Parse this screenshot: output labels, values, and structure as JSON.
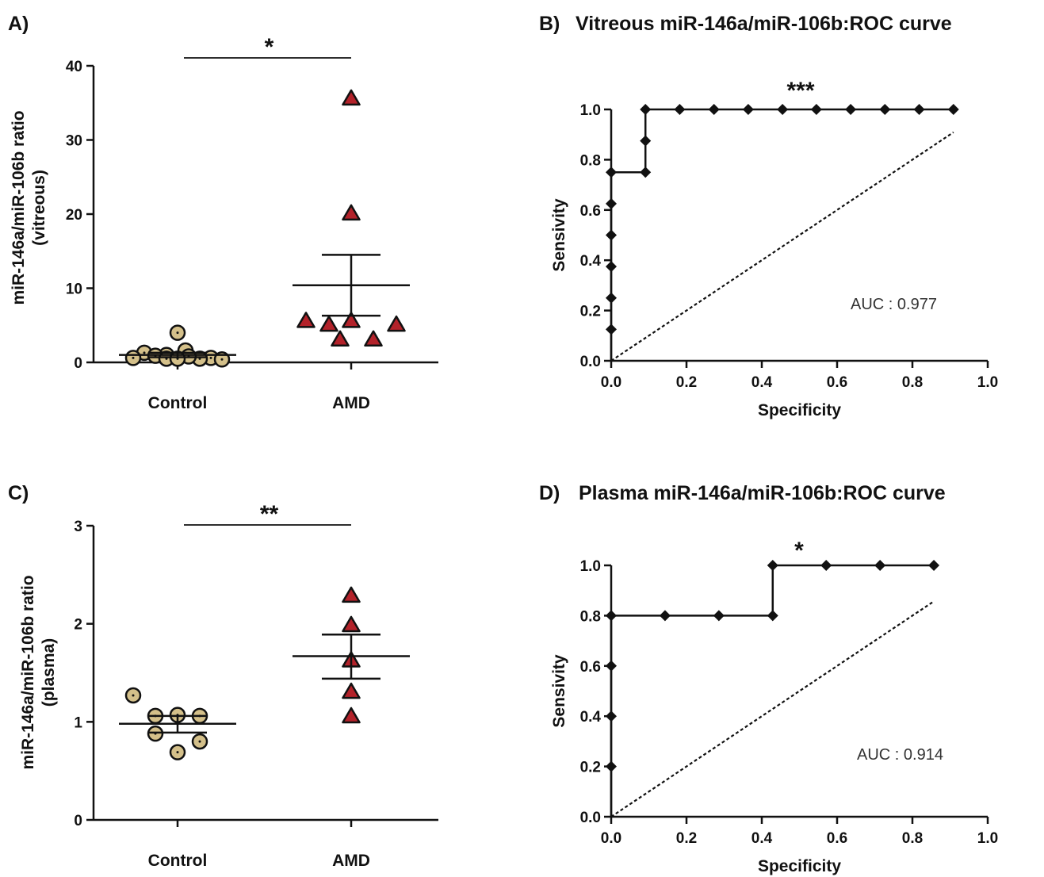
{
  "colors": {
    "axis": "#111111",
    "control_fill": "#d4c08a",
    "amd_fill": "#b3222a",
    "marker_stroke": "#111111"
  },
  "chart_data": [
    {
      "id": "A",
      "type": "scatter",
      "panel_letter": "A)",
      "title": "",
      "ylabel_lines": [
        "miR-146a/miR-106b ratio",
        "(vitreous)"
      ],
      "xlabel": "",
      "categories": [
        "Control",
        "AMD"
      ],
      "ylim": [
        0,
        40
      ],
      "yticks": [
        0,
        10,
        20,
        30,
        40
      ],
      "significance": "*",
      "series": [
        {
          "category": "Control",
          "marker": "circle",
          "values": [
            4.0,
            1.3,
            1.6,
            1.0,
            0.6,
            0.6,
            0.9,
            0.5,
            0.5,
            0.8,
            0.4,
            0.5
          ],
          "mean": 1.0,
          "sem_low": 0.7,
          "sem_high": 1.3
        },
        {
          "category": "AMD",
          "marker": "triangle",
          "values": [
            35.5,
            20.0,
            5.5,
            5.5,
            5.0,
            5.0,
            3.0,
            3.0
          ],
          "mean": 10.4,
          "sem_low": 6.3,
          "sem_high": 14.5
        }
      ]
    },
    {
      "id": "B",
      "type": "line",
      "panel_letter": "B)",
      "title": "Vitreous miR-146a/miR-106b:ROC curve",
      "xlabel": "Specificity",
      "ylabel": "Sensivity",
      "xlim": [
        0,
        1
      ],
      "ylim": [
        0,
        1
      ],
      "xticks": [
        "0.0",
        "0.2",
        "0.4",
        "0.6",
        "0.8",
        "1.0"
      ],
      "yticks": [
        "0.0",
        "0.2",
        "0.4",
        "0.6",
        "0.8",
        "1.0"
      ],
      "significance": "***",
      "auc_label": "AUC : 0.977",
      "x": [
        0,
        0,
        0,
        0,
        0,
        0,
        0,
        0,
        0.091,
        0.091,
        0.091,
        0.182,
        0.273,
        0.364,
        0.455,
        0.545,
        0.636,
        0.727,
        0.818,
        0.909
      ],
      "y": [
        0,
        0.125,
        0.25,
        0.375,
        0.5,
        0.625,
        0.75,
        0.75,
        0.75,
        0.875,
        1.0,
        1.0,
        1.0,
        1.0,
        1.0,
        1.0,
        1.0,
        1.0,
        1.0,
        1.0
      ],
      "markers_x": [
        0,
        0,
        0,
        0,
        0,
        0,
        0.091,
        0.091,
        0.091,
        0.182,
        0.273,
        0.364,
        0.455,
        0.545,
        0.636,
        0.727,
        0.818,
        0.909
      ],
      "markers_y": [
        0.125,
        0.25,
        0.375,
        0.5,
        0.625,
        0.75,
        0.75,
        0.875,
        1.0,
        1.0,
        1.0,
        1.0,
        1.0,
        1.0,
        1.0,
        1.0,
        1.0,
        1.0
      ],
      "reference_line": {
        "x": [
          0,
          0.909
        ],
        "y": [
          0,
          0.909
        ]
      }
    },
    {
      "id": "C",
      "type": "scatter",
      "panel_letter": "C)",
      "title": "",
      "ylabel_lines": [
        "miR-146a/miR-106b ratio",
        "(plasma)"
      ],
      "xlabel": "",
      "categories": [
        "Control",
        "AMD"
      ],
      "ylim": [
        0,
        3
      ],
      "yticks": [
        0,
        1,
        2,
        3
      ],
      "significance": "**",
      "series": [
        {
          "category": "Control",
          "marker": "circle",
          "values": [
            1.27,
            1.06,
            1.06,
            1.07,
            0.88,
            0.8,
            0.69
          ],
          "mean": 0.98,
          "sem_low": 0.89,
          "sem_high": 1.06
        },
        {
          "category": "AMD",
          "marker": "triangle",
          "values": [
            2.28,
            1.98,
            1.62,
            1.3,
            1.05
          ],
          "mean": 1.67,
          "sem_low": 1.44,
          "sem_high": 1.89
        }
      ]
    },
    {
      "id": "D",
      "type": "line",
      "panel_letter": "D)",
      "title": "Plasma miR-146a/miR-106b:ROC curve",
      "xlabel": "Specificity",
      "ylabel": "Sensivity",
      "xlim": [
        0,
        1
      ],
      "ylim": [
        0,
        1
      ],
      "xticks": [
        "0.0",
        "0.2",
        "0.4",
        "0.6",
        "0.8",
        "1.0"
      ],
      "yticks": [
        "0.0",
        "0.2",
        "0.4",
        "0.6",
        "0.8",
        "1.0"
      ],
      "significance": "*",
      "auc_label": "AUC : 0.914",
      "x": [
        0,
        0,
        0,
        0,
        0,
        0.143,
        0.286,
        0.429,
        0.429,
        0.571,
        0.714,
        0.857
      ],
      "y": [
        0,
        0.2,
        0.4,
        0.6,
        0.8,
        0.8,
        0.8,
        0.8,
        1.0,
        1.0,
        1.0,
        1.0
      ],
      "markers_x": [
        0,
        0,
        0,
        0,
        0.143,
        0.286,
        0.429,
        0.429,
        0.571,
        0.714,
        0.857
      ],
      "markers_y": [
        0.2,
        0.4,
        0.6,
        0.8,
        0.8,
        0.8,
        0.8,
        1.0,
        1.0,
        1.0,
        1.0
      ],
      "reference_line": {
        "x": [
          0,
          0.857
        ],
        "y": [
          0,
          0.857
        ]
      }
    }
  ]
}
